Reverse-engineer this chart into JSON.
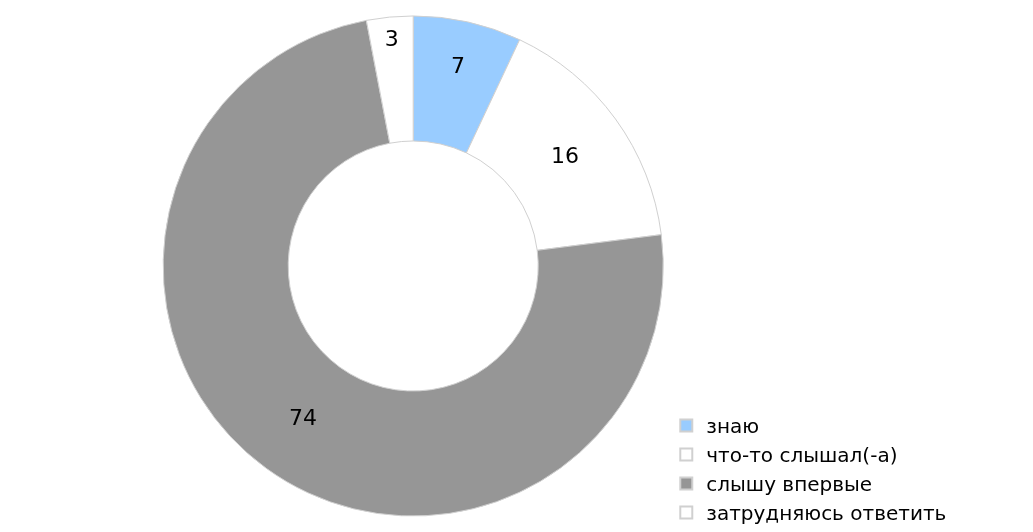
{
  "chart_data": {
    "type": "donut",
    "categories": [
      "знаю",
      "что-то слышал(-а)",
      "слышу впервые",
      "затрудняюсь ответить"
    ],
    "values": [
      7,
      16,
      74,
      3
    ],
    "colors": [
      "#99ccff",
      "#ffffff",
      "#969696",
      "#ffffff"
    ],
    "data_labels": true,
    "legend": "bottom right"
  }
}
